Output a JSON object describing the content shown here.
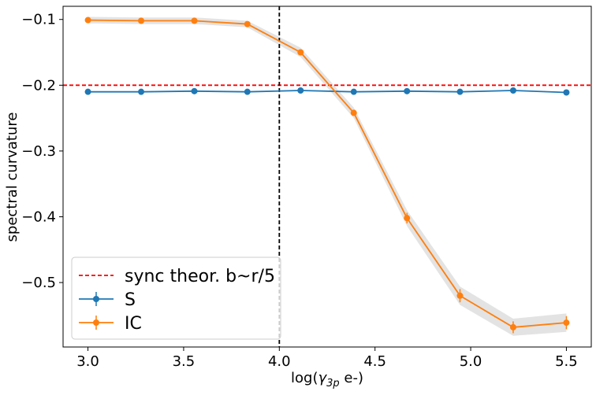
{
  "chart_data": {
    "type": "line",
    "xlabel_prefix": "log(",
    "xlabel_symbol": "γ",
    "xlabel_sub": "3p",
    "xlabel_suffix": " e-)",
    "ylabel": "spectral curvature",
    "xlim": [
      2.87,
      5.63
    ],
    "ylim": [
      -0.598,
      -0.08
    ],
    "xticks": [
      3.0,
      3.5,
      4.0,
      4.5,
      5.0,
      5.5
    ],
    "xtick_labels": [
      "3.0",
      "3.5",
      "4.0",
      "4.5",
      "5.0",
      "5.5"
    ],
    "yticks": [
      -0.1,
      -0.2,
      -0.3,
      -0.4,
      -0.5
    ],
    "ytick_labels": [
      "−0.1",
      "−0.2",
      "−0.3",
      "−0.4",
      "−0.5"
    ],
    "grid": false,
    "legend_position": "lower-left",
    "reference_lines": [
      {
        "orientation": "horizontal",
        "value": -0.2,
        "color": "#ff0000",
        "style": "dashed",
        "name": "sync theor. b~r/5"
      },
      {
        "orientation": "vertical",
        "value": 4.0,
        "color": "#000000",
        "style": "dashed"
      }
    ],
    "series": [
      {
        "name": "S",
        "color": "#1f77b4",
        "x": [
          3.0,
          3.278,
          3.556,
          3.833,
          4.111,
          4.389,
          4.667,
          4.944,
          5.222,
          5.5
        ],
        "y": [
          -0.21,
          -0.21,
          -0.209,
          -0.21,
          -0.208,
          -0.21,
          -0.209,
          -0.21,
          -0.208,
          -0.211
        ],
        "err": [
          0.001,
          0.001,
          0.001,
          0.001,
          0.001,
          0.001,
          0.001,
          0.001,
          0.001,
          0.001
        ]
      },
      {
        "name": "IC",
        "color": "#ff7f0e",
        "x": [
          3.0,
          3.278,
          3.556,
          3.833,
          4.111,
          4.389,
          4.667,
          4.944,
          5.222,
          5.5
        ],
        "y": [
          -0.101,
          -0.102,
          -0.102,
          -0.107,
          -0.15,
          -0.242,
          -0.402,
          -0.52,
          -0.568,
          -0.561
        ],
        "err": [
          0.001,
          0.001,
          0.001,
          0.001,
          0.003,
          0.004,
          0.008,
          0.01,
          0.009,
          0.01
        ]
      }
    ]
  }
}
